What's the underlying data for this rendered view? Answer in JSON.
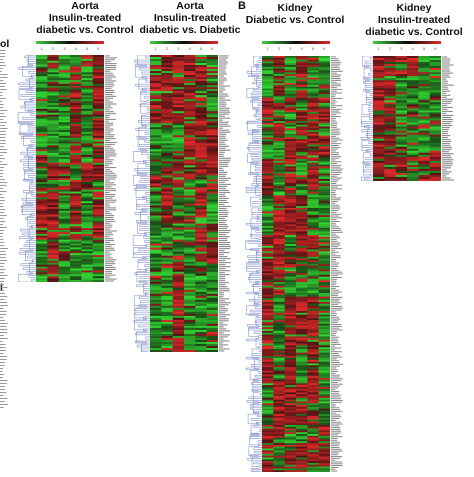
{
  "panel_b": {
    "letter": "B"
  },
  "partial_left_title": {
    "line1": "ol",
    "line2": "l"
  },
  "panels": [
    {
      "id": "aorta-insulin-vs-control",
      "title_line1": "Aorta",
      "title_line2": "Insulin-treated",
      "title_line3": "diabetic vs. Control",
      "rows": 118,
      "cols": 6,
      "sample_numbers": [
        "1",
        "2",
        "3",
        "4",
        "5",
        "6"
      ]
    },
    {
      "id": "aorta-insulin-vs-diabetic",
      "title_line1": "Aorta",
      "title_line2": "Insulin-treated",
      "title_line3": "diabetic vs. Diabetic",
      "rows": 148,
      "cols": 6,
      "sample_numbers": [
        "1",
        "2",
        "3",
        "4",
        "5",
        "6"
      ]
    },
    {
      "id": "kidney-diabetic-vs-control",
      "title_line1": "Kidney",
      "title_line2": "Diabetic vs. Control",
      "title_line3": "",
      "rows": 230,
      "cols": 6,
      "sample_numbers": [
        "1",
        "2",
        "3",
        "4",
        "5",
        "6"
      ]
    },
    {
      "id": "kidney-insulin-vs-control",
      "title_line1": "Kidney",
      "title_line2": "Insulin-treated",
      "title_line3": "diabetic vs. Control",
      "rows": 62,
      "cols": 6,
      "sample_numbers": [
        "1",
        "2",
        "3",
        "4",
        "5",
        "6"
      ]
    }
  ],
  "colors": {
    "low": "#33d633",
    "mid": "#0a0a0a",
    "high": "#e02a2a",
    "dendrogram": "#4a5fb0"
  }
}
